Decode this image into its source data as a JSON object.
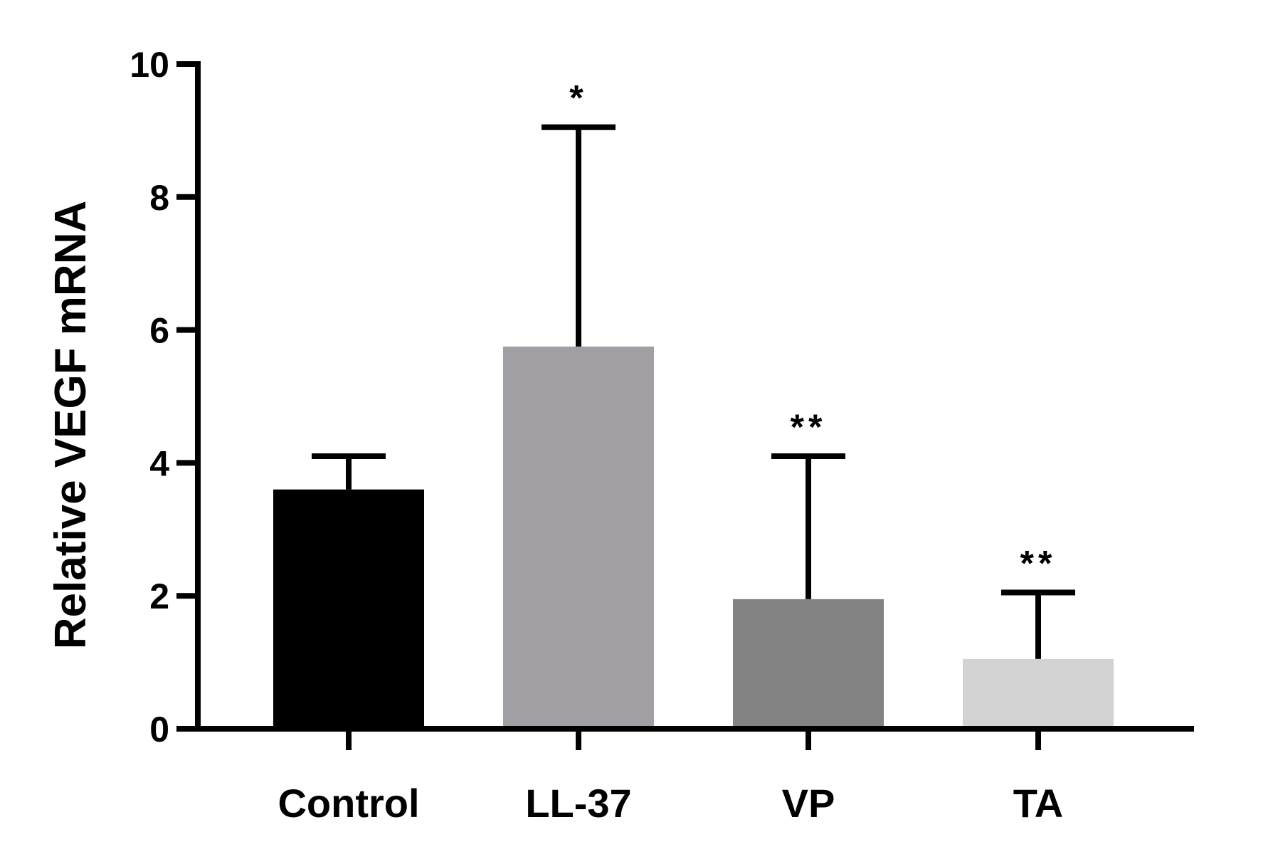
{
  "chart_data": {
    "type": "bar",
    "title": "",
    "xlabel": "",
    "ylabel": "Relative VEGF mRNA",
    "ylim": [
      0,
      10
    ],
    "yticks": [
      0,
      2,
      4,
      6,
      8,
      10
    ],
    "grid": false,
    "categories": [
      "Control",
      "LL-37",
      "VP",
      "TA"
    ],
    "values": [
      3.6,
      5.75,
      1.95,
      1.05
    ],
    "error_upper": [
      4.1,
      9.05,
      4.1,
      2.05
    ],
    "significance": [
      "",
      "*",
      "**",
      "**"
    ],
    "colors": [
      "#000000",
      "#a19fa3",
      "#838383",
      "#d3d3d3"
    ]
  }
}
